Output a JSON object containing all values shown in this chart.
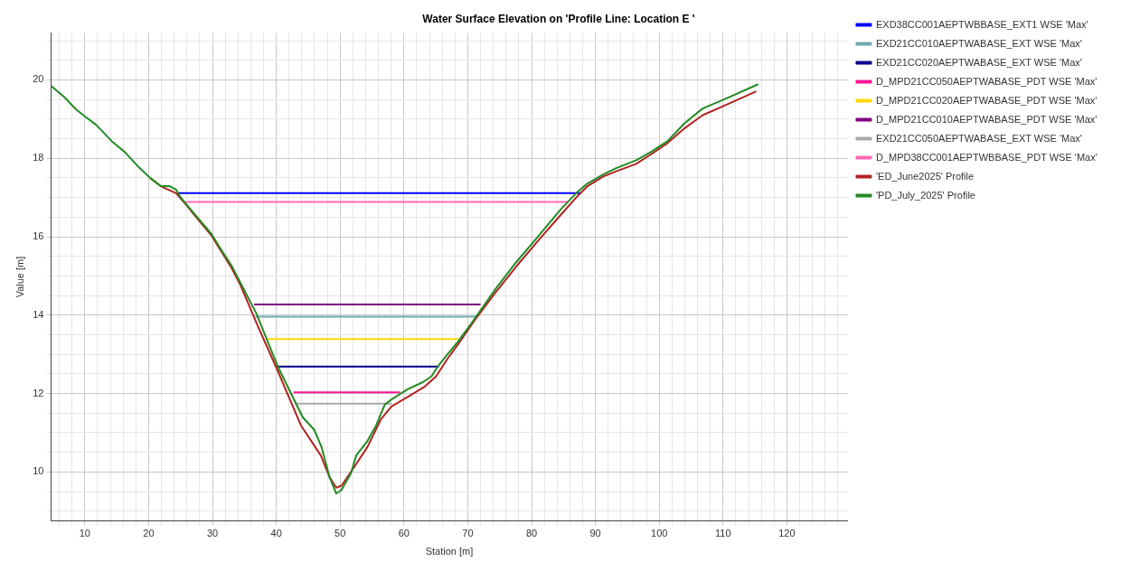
{
  "chart_data": {
    "type": "line",
    "title": "Water Surface Elevation on 'Profile Line: Location E '",
    "xlabel": "Station [m]",
    "ylabel": "Value [m]",
    "xlim": [
      4.7,
      129.5
    ],
    "ylim": [
      8.75,
      21.2
    ],
    "xticks": [
      {
        "value": 6,
        "label": null
      },
      {
        "value": 8,
        "label": null
      },
      10,
      {
        "value": 12,
        "label": null
      },
      {
        "value": 14,
        "label": null
      },
      {
        "value": 16,
        "label": null
      },
      {
        "value": 18,
        "label": null
      },
      20,
      {
        "value": 22,
        "label": null
      },
      {
        "value": 24,
        "label": null
      },
      {
        "value": 26,
        "label": null
      },
      {
        "value": 28,
        "label": null
      },
      30,
      {
        "value": 32,
        "label": null
      },
      {
        "value": 34,
        "label": null
      },
      {
        "value": 36,
        "label": null
      },
      {
        "value": 38,
        "label": null
      },
      40,
      {
        "value": 42,
        "label": null
      },
      {
        "value": 44,
        "label": null
      },
      {
        "value": 46,
        "label": null
      },
      {
        "value": 48,
        "label": null
      },
      50,
      {
        "value": 52,
        "label": null
      },
      {
        "value": 54,
        "label": null
      },
      {
        "value": 56,
        "label": null
      },
      {
        "value": 58,
        "label": null
      },
      60,
      {
        "value": 62,
        "label": null
      },
      {
        "value": 64,
        "label": null
      },
      {
        "value": 66,
        "label": null
      },
      {
        "value": 68,
        "label": null
      },
      70,
      {
        "value": 72,
        "label": null
      },
      {
        "value": 74,
        "label": null
      },
      {
        "value": 76,
        "label": null
      },
      {
        "value": 78,
        "label": null
      },
      80,
      {
        "value": 82,
        "label": null
      },
      {
        "value": 84,
        "label": null
      },
      {
        "value": 86,
        "label": null
      },
      {
        "value": 88,
        "label": null
      },
      90,
      {
        "value": 92,
        "label": null
      },
      {
        "value": 94,
        "label": null
      },
      {
        "value": 96,
        "label": null
      },
      {
        "value": 98,
        "label": null
      },
      100,
      {
        "value": 102,
        "label": null
      },
      {
        "value": 104,
        "label": null
      },
      {
        "value": 106,
        "label": null
      },
      {
        "value": 108,
        "label": null
      },
      110,
      {
        "value": 112,
        "label": null
      },
      {
        "value": 114,
        "label": null
      },
      {
        "value": 116,
        "label": null
      },
      {
        "value": 118,
        "label": null
      },
      120,
      {
        "value": 122,
        "label": null
      },
      {
        "value": 124,
        "label": null
      },
      {
        "value": 126,
        "label": null
      },
      {
        "value": 128,
        "label": null
      }
    ],
    "yticks": [
      {
        "value": 9,
        "label": null
      },
      {
        "value": 9.5,
        "label": null
      },
      10,
      {
        "value": 10.5,
        "label": null
      },
      {
        "value": 11,
        "label": null
      },
      {
        "value": 11.5,
        "label": null
      },
      12,
      {
        "value": 12.5,
        "label": null
      },
      {
        "value": 13,
        "label": null
      },
      {
        "value": 13.5,
        "label": null
      },
      14,
      {
        "value": 14.5,
        "label": null
      },
      {
        "value": 15,
        "label": null
      },
      {
        "value": 15.5,
        "label": null
      },
      16,
      {
        "value": 16.5,
        "label": null
      },
      {
        "value": 17,
        "label": null
      },
      {
        "value": 17.5,
        "label": null
      },
      18,
      {
        "value": 18.5,
        "label": null
      },
      {
        "value": 19,
        "label": null
      },
      {
        "value": 19.5,
        "label": null
      },
      20,
      {
        "value": 20.5,
        "label": null
      },
      {
        "value": 21,
        "label": null
      }
    ],
    "grid": true,
    "legend": "top right",
    "marker": "none",
    "line_style": "solid",
    "series": [
      {
        "name": "EXD38CC001AEPTWBBASE_EXT1 WSE 'Max'",
        "color": "#0000ff",
        "x": [
          24.6,
          87.8
        ],
        "values": [
          17.11,
          17.11
        ]
      },
      {
        "name": "EXD21CC010AEPTWABASE_EXT WSE 'Max'",
        "color": "#6fa8b0",
        "x": [
          36.7,
          71.4
        ],
        "values": [
          13.96,
          13.96
        ]
      },
      {
        "name": "EXD21CC020AEPTWABASE_EXT WSE 'Max'",
        "color": "#00008b",
        "x": [
          39.9,
          65.5
        ],
        "values": [
          12.69,
          12.69
        ]
      },
      {
        "name": "D_MPD21CC050AEPTWABASE_PDT WSE 'Max'",
        "color": "#ff1493",
        "x": [
          42.7,
          59.4
        ],
        "values": [
          12.03,
          12.03
        ]
      },
      {
        "name": "D_MPD21CC020AEPTWABASE_PDT WSE 'Max'",
        "color": "#ffd700",
        "x": [
          38.7,
          68.5
        ],
        "values": [
          13.39,
          13.39
        ]
      },
      {
        "name": "D_MPD21CC010AEPTWABASE_PDT WSE 'Max'",
        "color": "#800080",
        "x": [
          36.5,
          72.0
        ],
        "values": [
          14.27,
          14.27
        ]
      },
      {
        "name": "EXD21CC050AEPTWABASE_EXT WSE 'Max'",
        "color": "#a9a9a9",
        "x": [
          42.9,
          58.1
        ],
        "values": [
          11.74,
          11.74
        ]
      },
      {
        "name": "D_MPD38CC001AEPTWBBASE_PDT WSE 'Max'",
        "color": "#ff69b4",
        "x": [
          25.6,
          85.7
        ],
        "values": [
          16.89,
          16.89
        ]
      },
      {
        "name": "'ED_June2025' Profile",
        "color": "#b22222",
        "x": [
          20.3,
          21.9,
          24.3,
          25.9,
          27.7,
          29.8,
          31.4,
          33,
          34.4,
          37.16,
          39.98,
          43.85,
          46.98,
          48.34,
          49.38,
          50.22,
          51.78,
          54.29,
          56.38,
          58.05,
          60.87,
          63.27,
          65.05,
          66.83,
          68.5,
          71.3,
          74.45,
          77.59,
          81.03,
          84.58,
          86.99,
          88.76,
          91.16,
          93.25,
          96.39,
          98.79,
          101.3,
          104.0,
          106.8,
          110.7,
          115.2
        ],
        "values": [
          17.49,
          17.29,
          17.11,
          16.81,
          16.45,
          16.04,
          15.62,
          15.2,
          14.76,
          13.7,
          12.67,
          11.19,
          10.42,
          9.87,
          9.6,
          9.65,
          10.02,
          10.64,
          11.34,
          11.67,
          11.94,
          12.18,
          12.44,
          12.89,
          13.26,
          13.92,
          14.6,
          15.24,
          15.9,
          16.56,
          17.0,
          17.29,
          17.53,
          17.67,
          17.86,
          18.11,
          18.39,
          18.77,
          19.1,
          19.38,
          19.71
        ]
      },
      {
        "name": "'PD_July_2025' Profile",
        "color": "#228b22",
        "x": [
          4.7,
          6.8,
          8.6,
          10,
          11.8,
          14.2,
          16.2,
          18.3,
          20.3,
          21.9,
          23.3,
          24.3,
          24.9,
          25.9,
          27.7,
          29.8,
          31.4,
          33,
          34.4,
          36.85,
          40.29,
          44.16,
          45.93,
          47.08,
          48.34,
          49.38,
          50.22,
          51.68,
          52.52,
          54.29,
          55.65,
          57.01,
          58.05,
          60.56,
          62.96,
          64.32,
          65.37,
          66.83,
          68.5,
          70.48,
          74.45,
          77.59,
          81.03,
          84.58,
          86.99,
          88.76,
          91.16,
          93.25,
          96.39,
          98.79,
          101.3,
          104.0,
          106.8,
          110.7,
          115.5
        ],
        "values": [
          19.85,
          19.56,
          19.25,
          19.07,
          18.85,
          18.44,
          18.17,
          17.8,
          17.49,
          17.29,
          17.29,
          17.2,
          17.03,
          16.83,
          16.48,
          16.08,
          15.66,
          15.26,
          14.82,
          14.05,
          12.67,
          11.39,
          11.08,
          10.64,
          9.87,
          9.45,
          9.54,
          9.96,
          10.42,
          10.79,
          11.19,
          11.72,
          11.85,
          12.11,
          12.29,
          12.44,
          12.71,
          13.0,
          13.33,
          13.77,
          14.69,
          15.35,
          16.01,
          16.7,
          17.11,
          17.36,
          17.58,
          17.75,
          17.95,
          18.17,
          18.44,
          18.9,
          19.27,
          19.54,
          19.89
        ]
      }
    ]
  }
}
